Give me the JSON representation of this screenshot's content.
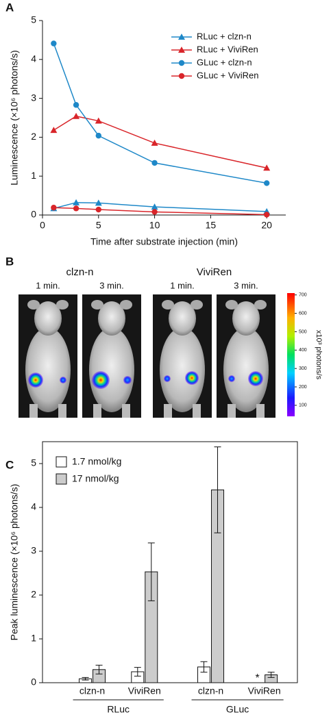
{
  "chart_data": [
    {
      "type": "line",
      "label": "A",
      "x": [
        1,
        3,
        5,
        10,
        20
      ],
      "series": [
        {
          "name": "RLuc + clzn-n",
          "color": "#1e88c8",
          "marker": "triangle",
          "values": [
            0.17,
            0.32,
            0.31,
            0.21,
            0.09
          ]
        },
        {
          "name": "RLuc + ViviRen",
          "color": "#d9252a",
          "marker": "triangle",
          "values": [
            2.18,
            2.54,
            2.42,
            1.85,
            1.21
          ]
        },
        {
          "name": "GLuc + clzn-n",
          "color": "#1e88c8",
          "marker": "circle",
          "values": [
            4.41,
            2.83,
            2.04,
            1.34,
            0.82
          ]
        },
        {
          "name": "GLuc + ViviRen",
          "color": "#d9252a",
          "marker": "circle",
          "values": [
            0.19,
            0.17,
            0.14,
            0.08,
            0.01
          ]
        }
      ],
      "xlim": [
        0,
        21.7
      ],
      "xticks": [
        0,
        5,
        10,
        15,
        20
      ],
      "ylim": [
        0,
        5
      ],
      "yticks": [
        0,
        1,
        2,
        3,
        4,
        5
      ],
      "xlabel": "Time after substrate injection (min)",
      "ylabel": "Luminescence (×10⁶ photons/s)",
      "legend": "upper right"
    },
    {
      "type": "bar",
      "label": "C",
      "categories": [
        "clzn-n",
        "ViviRen",
        "clzn-n",
        "ViviRen"
      ],
      "groups": [
        "RLuc",
        "GLuc"
      ],
      "series": [
        {
          "name": "1.7 nmol/kg",
          "color": "#ffffff",
          "values": [
            0.09,
            0.25,
            0.36,
            null
          ],
          "errors": [
            0.03,
            0.1,
            0.12,
            null
          ]
        },
        {
          "name": "17 nmol/kg",
          "color": "#cccccc",
          "values": [
            0.3,
            2.53,
            4.4,
            0.18
          ],
          "errors": [
            0.1,
            0.66,
            0.98,
            0.06
          ]
        }
      ],
      "missing_marker": "*",
      "ylim": [
        0,
        5.5
      ],
      "yticks": [
        0,
        1,
        2,
        3,
        4,
        5
      ],
      "ylabel": "Peak luminescence (×10⁶ photons/s)",
      "legend": "upper left",
      "frame": "box"
    }
  ],
  "panel_b": {
    "label": "B",
    "groups": [
      {
        "name": "clzn-n",
        "times": [
          "1 min.",
          "3 min."
        ]
      },
      {
        "name": "ViviRen",
        "times": [
          "1 min.",
          "3 min."
        ]
      }
    ],
    "colorbar_label": "x10³ photons/s",
    "colorbar_lim": [
      40,
      710
    ],
    "colorbar_ticks": [
      100,
      200,
      300,
      400,
      500,
      600,
      700
    ]
  }
}
